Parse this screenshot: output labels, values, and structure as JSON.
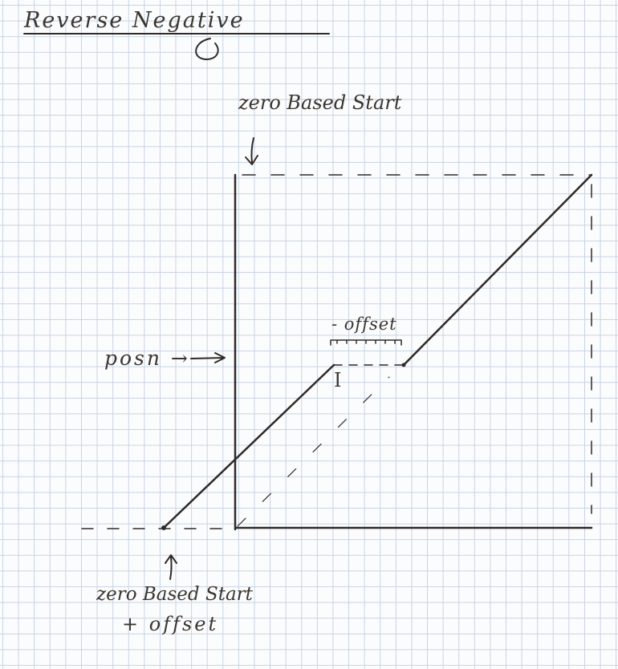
{
  "title": "Reverse Negative",
  "labels": {
    "zero_based_start_top": "zero Based Start",
    "posn": "posn →",
    "neg_offset": "- offset",
    "marker": "I",
    "zero_based_start_bottom_line1": "zero Based Start",
    "zero_based_start_bottom_line2": "+ offset"
  },
  "colors": {
    "ink": "#2f2a28",
    "grid": "#c7d3e2",
    "paper": "#fbfcfd"
  }
}
